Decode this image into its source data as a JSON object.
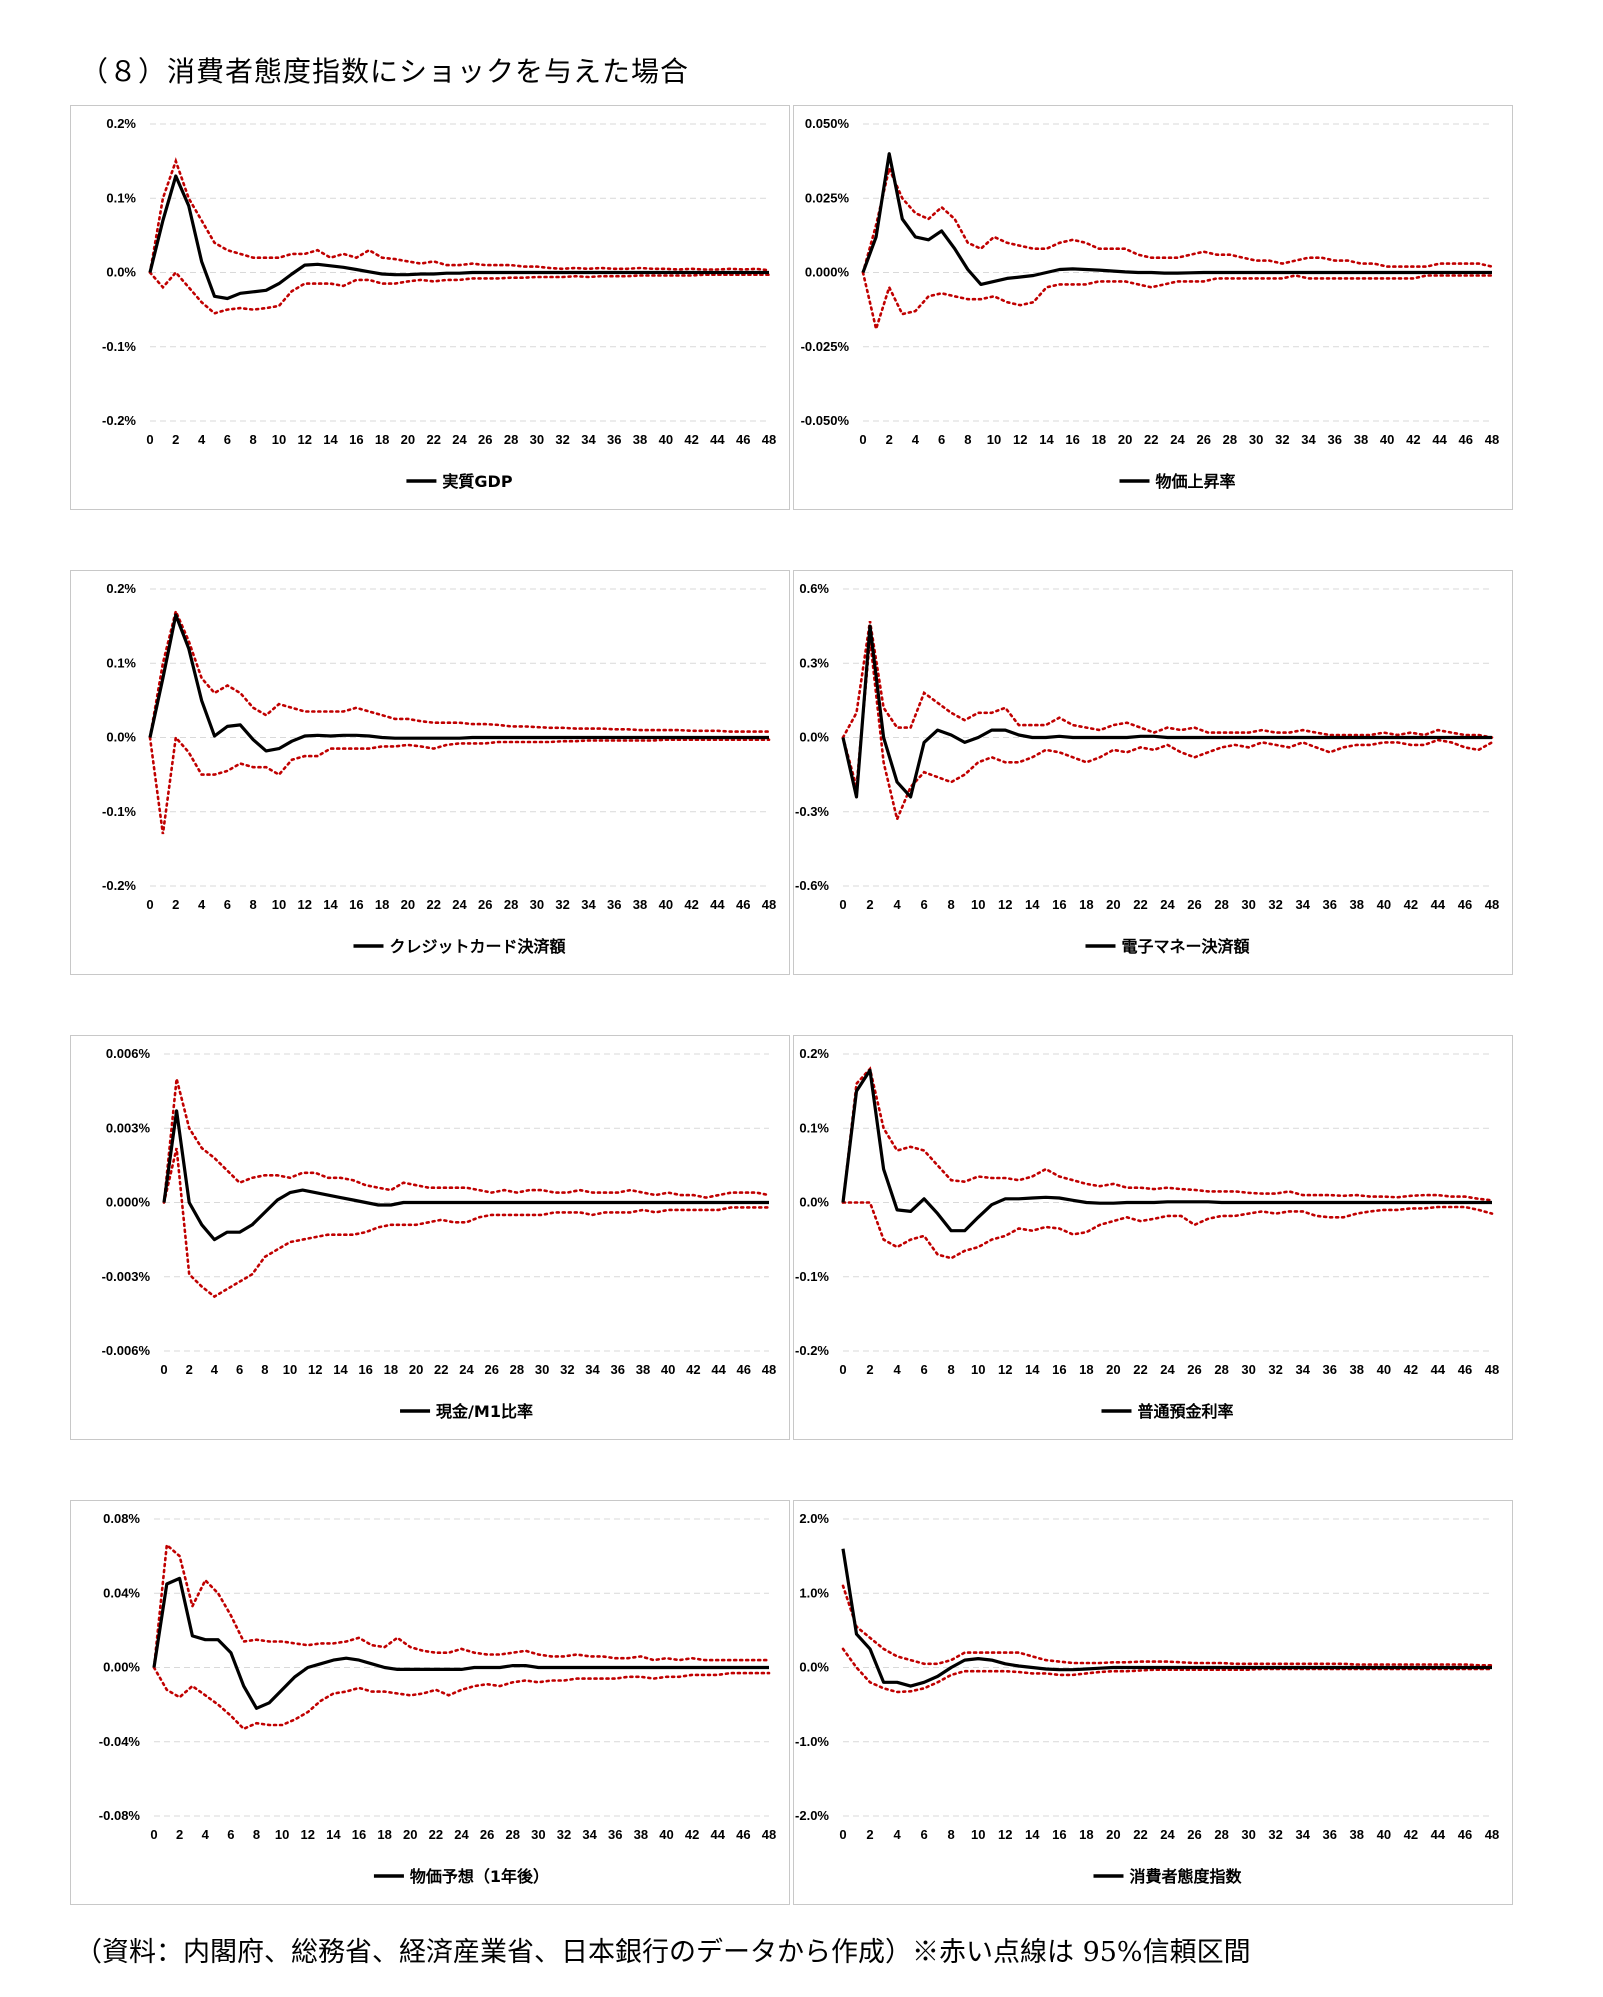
{
  "page_title": "（８）消費者態度指数にショックを与えた場合",
  "footnote": "（資料：内閣府、総務省、経済産業省、日本銀行のデータから作成）※赤い点線は 95%信頼区間",
  "colors": {
    "response": "#000000",
    "confidence_band": "#c00000",
    "gridline": "#d9d9d9",
    "panel_border": "#c8c8c8"
  },
  "x_ticks": [
    "0",
    "2",
    "4",
    "6",
    "8",
    "10",
    "12",
    "14",
    "16",
    "18",
    "20",
    "22",
    "24",
    "26",
    "28",
    "30",
    "32",
    "34",
    "36",
    "38",
    "40",
    "42",
    "44",
    "46",
    "48"
  ],
  "chart_data": [
    {
      "type": "line",
      "legend": "実質GDP",
      "ylim": [
        -0.2,
        0.2
      ],
      "y_ticks": [
        "0.2%",
        "0.1%",
        "0.0%",
        "-0.1%",
        "-0.2%"
      ],
      "response": [
        0,
        0.07,
        0.13,
        0.09,
        0.015,
        -0.032,
        -0.035,
        -0.028,
        -0.026,
        -0.024,
        -0.015,
        -0.002,
        0.01,
        0.011,
        0.009,
        0.007,
        0.004,
        0.001,
        -0.002,
        -0.003,
        -0.003,
        -0.002,
        -0.002,
        -0.001,
        -0.001,
        0,
        0,
        0,
        0,
        0,
        0,
        0,
        0,
        0,
        0,
        0,
        0,
        0,
        0,
        0,
        0,
        0,
        0,
        0,
        0,
        0,
        0,
        0,
        0
      ],
      "upper": [
        0,
        0.1,
        0.15,
        0.1,
        0.07,
        0.04,
        0.03,
        0.025,
        0.02,
        0.02,
        0.02,
        0.025,
        0.025,
        0.03,
        0.02,
        0.025,
        0.02,
        0.03,
        0.02,
        0.018,
        0.015,
        0.012,
        0.015,
        0.01,
        0.01,
        0.012,
        0.01,
        0.01,
        0.01,
        0.008,
        0.008,
        0.006,
        0.005,
        0.006,
        0.005,
        0.006,
        0.005,
        0.005,
        0.006,
        0.005,
        0.005,
        0.004,
        0.005,
        0.004,
        0.004,
        0.005,
        0.004,
        0.005,
        0.003
      ],
      "lower": [
        0,
        -0.02,
        0,
        -0.02,
        -0.04,
        -0.055,
        -0.05,
        -0.048,
        -0.05,
        -0.048,
        -0.045,
        -0.025,
        -0.015,
        -0.015,
        -0.015,
        -0.018,
        -0.01,
        -0.01,
        -0.015,
        -0.015,
        -0.012,
        -0.01,
        -0.012,
        -0.01,
        -0.01,
        -0.008,
        -0.008,
        -0.008,
        -0.007,
        -0.007,
        -0.006,
        -0.006,
        -0.006,
        -0.005,
        -0.006,
        -0.005,
        -0.005,
        -0.005,
        -0.004,
        -0.004,
        -0.004,
        -0.004,
        -0.004,
        -0.003,
        -0.003,
        -0.003,
        -0.003,
        -0.003,
        -0.003
      ]
    },
    {
      "type": "line",
      "legend": "物価上昇率",
      "ylim": [
        -0.05,
        0.05
      ],
      "y_ticks": [
        "0.050%",
        "0.025%",
        "0.000%",
        "-0.025%",
        "-0.050%"
      ],
      "response": [
        0,
        0.012,
        0.04,
        0.018,
        0.012,
        0.011,
        0.014,
        0.008,
        0.001,
        -0.004,
        -0.003,
        -0.002,
        -0.0015,
        -0.001,
        0,
        0.001,
        0.0012,
        0.001,
        0.0008,
        0.0005,
        0.0002,
        0,
        0,
        -0.0002,
        -0.0002,
        -0.0001,
        0,
        0,
        0,
        0,
        0,
        0,
        0,
        0,
        0,
        0,
        0,
        0,
        0,
        0,
        0,
        0,
        0,
        0,
        0,
        0,
        0,
        0,
        0
      ],
      "upper": [
        0,
        0.016,
        0.035,
        0.025,
        0.02,
        0.018,
        0.022,
        0.018,
        0.01,
        0.008,
        0.012,
        0.01,
        0.009,
        0.008,
        0.008,
        0.01,
        0.011,
        0.01,
        0.008,
        0.008,
        0.008,
        0.006,
        0.005,
        0.005,
        0.005,
        0.006,
        0.007,
        0.006,
        0.006,
        0.005,
        0.004,
        0.004,
        0.003,
        0.004,
        0.005,
        0.005,
        0.004,
        0.004,
        0.003,
        0.003,
        0.002,
        0.002,
        0.002,
        0.002,
        0.003,
        0.003,
        0.003,
        0.003,
        0.002
      ],
      "lower": [
        0,
        -0.019,
        -0.005,
        -0.014,
        -0.013,
        -0.008,
        -0.007,
        -0.008,
        -0.009,
        -0.009,
        -0.008,
        -0.01,
        -0.011,
        -0.01,
        -0.005,
        -0.004,
        -0.004,
        -0.004,
        -0.003,
        -0.003,
        -0.003,
        -0.004,
        -0.005,
        -0.004,
        -0.003,
        -0.003,
        -0.003,
        -0.002,
        -0.002,
        -0.002,
        -0.002,
        -0.002,
        -0.002,
        -0.001,
        -0.002,
        -0.002,
        -0.002,
        -0.002,
        -0.002,
        -0.002,
        -0.002,
        -0.002,
        -0.002,
        -0.001,
        -0.001,
        -0.001,
        -0.001,
        -0.001,
        -0.001
      ]
    },
    {
      "type": "line",
      "legend": "クレジットカード決済額",
      "ylim": [
        -0.2,
        0.2
      ],
      "y_ticks": [
        "0.2%",
        "0.1%",
        "0.0%",
        "-0.1%",
        "-0.2%"
      ],
      "response": [
        0,
        0.08,
        0.165,
        0.12,
        0.05,
        0.002,
        0.015,
        0.017,
        -0.003,
        -0.018,
        -0.015,
        -0.005,
        0.002,
        0.003,
        0.002,
        0.003,
        0.003,
        0.002,
        0,
        -0.001,
        -0.001,
        -0.001,
        -0.001,
        -0.001,
        -0.001,
        0,
        0,
        0,
        0,
        0,
        0,
        0,
        0,
        0,
        0,
        0,
        0,
        0,
        0,
        0,
        0,
        0,
        0,
        0,
        0,
        0,
        0,
        0,
        0
      ],
      "upper": [
        0,
        0.1,
        0.17,
        0.13,
        0.08,
        0.06,
        0.07,
        0.06,
        0.04,
        0.03,
        0.045,
        0.04,
        0.035,
        0.035,
        0.035,
        0.035,
        0.04,
        0.035,
        0.03,
        0.025,
        0.025,
        0.022,
        0.02,
        0.02,
        0.02,
        0.018,
        0.018,
        0.017,
        0.015,
        0.015,
        0.014,
        0.013,
        0.013,
        0.012,
        0.012,
        0.012,
        0.011,
        0.011,
        0.01,
        0.01,
        0.01,
        0.01,
        0.009,
        0.009,
        0.009,
        0.008,
        0.008,
        0.008,
        0.008
      ],
      "lower": [
        0,
        -0.13,
        0,
        -0.02,
        -0.05,
        -0.05,
        -0.045,
        -0.035,
        -0.04,
        -0.04,
        -0.05,
        -0.03,
        -0.025,
        -0.025,
        -0.015,
        -0.015,
        -0.015,
        -0.015,
        -0.012,
        -0.012,
        -0.01,
        -0.012,
        -0.015,
        -0.01,
        -0.008,
        -0.008,
        -0.008,
        -0.006,
        -0.006,
        -0.006,
        -0.006,
        -0.006,
        -0.005,
        -0.005,
        -0.004,
        -0.004,
        -0.004,
        -0.004,
        -0.004,
        -0.004,
        -0.003,
        -0.003,
        -0.003,
        -0.003,
        -0.003,
        -0.003,
        -0.003,
        -0.003,
        -0.003
      ]
    },
    {
      "type": "line",
      "legend": "電子マネー決済額",
      "ylim": [
        -0.6,
        0.6
      ],
      "y_ticks": [
        "0.6%",
        "0.3%",
        "0.0%",
        "-0.3%",
        "-0.6%"
      ],
      "response": [
        0,
        -0.24,
        0.45,
        0,
        -0.18,
        -0.24,
        -0.02,
        0.03,
        0.01,
        -0.02,
        0,
        0.03,
        0.03,
        0.01,
        0,
        0,
        0.005,
        0,
        0,
        0,
        0,
        0,
        0.005,
        0.005,
        0,
        0,
        0,
        0,
        0,
        0,
        0,
        0,
        0,
        0,
        0,
        0,
        0,
        0,
        0,
        0,
        0,
        0,
        0,
        0,
        0,
        0,
        0,
        0,
        0
      ],
      "upper": [
        0,
        0.1,
        0.47,
        0.12,
        0.04,
        0.04,
        0.18,
        0.14,
        0.1,
        0.07,
        0.1,
        0.1,
        0.12,
        0.05,
        0.05,
        0.05,
        0.08,
        0.05,
        0.04,
        0.03,
        0.05,
        0.06,
        0.04,
        0.02,
        0.04,
        0.03,
        0.04,
        0.02,
        0.02,
        0.02,
        0.02,
        0.03,
        0.02,
        0.02,
        0.03,
        0.02,
        0.01,
        0.01,
        0.01,
        0.01,
        0.02,
        0.01,
        0.02,
        0.01,
        0.03,
        0.02,
        0.01,
        0.01,
        0
      ],
      "lower": [
        0,
        -0.2,
        0.4,
        -0.1,
        -0.33,
        -0.2,
        -0.14,
        -0.16,
        -0.18,
        -0.15,
        -0.1,
        -0.08,
        -0.1,
        -0.1,
        -0.08,
        -0.05,
        -0.06,
        -0.08,
        -0.1,
        -0.08,
        -0.05,
        -0.06,
        -0.04,
        -0.05,
        -0.03,
        -0.06,
        -0.08,
        -0.06,
        -0.04,
        -0.03,
        -0.04,
        -0.02,
        -0.03,
        -0.04,
        -0.02,
        -0.04,
        -0.06,
        -0.04,
        -0.03,
        -0.03,
        -0.02,
        -0.02,
        -0.03,
        -0.03,
        -0.01,
        -0.02,
        -0.04,
        -0.05,
        -0.02
      ]
    },
    {
      "type": "line",
      "legend": "現金/M1比率",
      "ylim": [
        -0.006,
        0.006
      ],
      "y_ticks": [
        "0.006%",
        "0.003%",
        "0.000%",
        "-0.003%",
        "-0.006%"
      ],
      "response": [
        0,
        0.0037,
        0,
        -0.0009,
        -0.0015,
        -0.0012,
        -0.0012,
        -0.0009,
        -0.0004,
        0.0001,
        0.0004,
        0.0005,
        0.0004,
        0.0003,
        0.0002,
        0.0001,
        0,
        -0.0001,
        -0.0001,
        0,
        0,
        0,
        0,
        0,
        0,
        0,
        0,
        0,
        0,
        0,
        0,
        0,
        0,
        0,
        0,
        0,
        0,
        0,
        0,
        0,
        0,
        0,
        0,
        0,
        0,
        0,
        0,
        0,
        0
      ],
      "upper": [
        0,
        0.005,
        0.003,
        0.0022,
        0.0018,
        0.0013,
        0.0008,
        0.001,
        0.0011,
        0.0011,
        0.001,
        0.0012,
        0.0012,
        0.001,
        0.001,
        0.0009,
        0.0007,
        0.0006,
        0.0005,
        0.0008,
        0.0007,
        0.0006,
        0.0006,
        0.0006,
        0.0006,
        0.0005,
        0.0004,
        0.0005,
        0.0004,
        0.0005,
        0.0005,
        0.0004,
        0.0004,
        0.0005,
        0.0004,
        0.0004,
        0.0004,
        0.0005,
        0.0004,
        0.0003,
        0.0004,
        0.0003,
        0.0003,
        0.0002,
        0.0003,
        0.0004,
        0.0004,
        0.0004,
        0.0003
      ],
      "lower": [
        0,
        0.0022,
        -0.0029,
        -0.0034,
        -0.0038,
        -0.0035,
        -0.0032,
        -0.0029,
        -0.0022,
        -0.0019,
        -0.0016,
        -0.0015,
        -0.0014,
        -0.0013,
        -0.0013,
        -0.0013,
        -0.0012,
        -0.001,
        -0.0009,
        -0.0009,
        -0.0009,
        -0.0008,
        -0.0007,
        -0.0008,
        -0.0008,
        -0.0006,
        -0.0005,
        -0.0005,
        -0.0005,
        -0.0005,
        -0.0005,
        -0.0004,
        -0.0004,
        -0.0004,
        -0.0005,
        -0.0004,
        -0.0004,
        -0.0004,
        -0.0003,
        -0.0004,
        -0.0003,
        -0.0003,
        -0.0003,
        -0.0003,
        -0.0003,
        -0.0002,
        -0.0002,
        -0.0002,
        -0.0002
      ]
    },
    {
      "type": "line",
      "legend": "普通預金利率",
      "ylim": [
        -0.2,
        0.2
      ],
      "y_ticks": [
        "0.2%",
        "0.1%",
        "0.0%",
        "-0.1%",
        "-0.2%"
      ],
      "response": [
        0,
        0.15,
        0.178,
        0.045,
        -0.01,
        -0.012,
        0.005,
        -0.015,
        -0.038,
        -0.038,
        -0.02,
        -0.003,
        0.005,
        0.005,
        0.006,
        0.007,
        0.006,
        0.003,
        0,
        -0.001,
        -0.001,
        0,
        0,
        0,
        0.001,
        0.001,
        0.001,
        0.001,
        0,
        0,
        0,
        0,
        0,
        0,
        0,
        0,
        0,
        0,
        0,
        0,
        0,
        0,
        0,
        0,
        0,
        0,
        0,
        0,
        0
      ],
      "upper": [
        0,
        0.16,
        0.18,
        0.1,
        0.07,
        0.075,
        0.07,
        0.05,
        0.03,
        0.028,
        0.035,
        0.033,
        0.033,
        0.03,
        0.035,
        0.045,
        0.035,
        0.03,
        0.025,
        0.022,
        0.025,
        0.02,
        0.02,
        0.018,
        0.02,
        0.018,
        0.017,
        0.015,
        0.015,
        0.015,
        0.013,
        0.012,
        0.012,
        0.015,
        0.01,
        0.01,
        0.01,
        0.009,
        0.01,
        0.008,
        0.008,
        0.007,
        0.009,
        0.01,
        0.01,
        0.008,
        0.008,
        0.005,
        0.003
      ],
      "lower": [
        0,
        0,
        0,
        -0.05,
        -0.06,
        -0.05,
        -0.045,
        -0.07,
        -0.075,
        -0.065,
        -0.06,
        -0.05,
        -0.045,
        -0.035,
        -0.038,
        -0.033,
        -0.035,
        -0.043,
        -0.04,
        -0.03,
        -0.025,
        -0.02,
        -0.025,
        -0.022,
        -0.018,
        -0.018,
        -0.03,
        -0.022,
        -0.018,
        -0.018,
        -0.015,
        -0.012,
        -0.015,
        -0.012,
        -0.012,
        -0.018,
        -0.02,
        -0.02,
        -0.015,
        -0.012,
        -0.01,
        -0.01,
        -0.008,
        -0.008,
        -0.006,
        -0.006,
        -0.006,
        -0.01,
        -0.015
      ]
    },
    {
      "type": "line",
      "legend": "物価予想（1年後）",
      "ylim": [
        -0.08,
        0.08
      ],
      "y_ticks": [
        "0.08%",
        "0.04%",
        "0.00%",
        "-0.04%",
        "-0.08%"
      ],
      "response": [
        0,
        0.045,
        0.048,
        0.017,
        0.015,
        0.015,
        0.008,
        -0.01,
        -0.022,
        -0.019,
        -0.012,
        -0.005,
        0,
        0.002,
        0.004,
        0.005,
        0.004,
        0.002,
        0,
        -0.001,
        -0.001,
        -0.001,
        -0.001,
        -0.001,
        -0.001,
        0,
        0,
        0,
        0.001,
        0.001,
        0,
        0,
        0,
        0,
        0,
        0,
        0,
        0,
        0,
        0,
        0,
        0,
        0,
        0,
        0,
        0,
        0,
        0,
        0
      ],
      "upper": [
        0,
        0.066,
        0.06,
        0.033,
        0.047,
        0.04,
        0.028,
        0.014,
        0.015,
        0.014,
        0.014,
        0.013,
        0.012,
        0.013,
        0.013,
        0.014,
        0.016,
        0.012,
        0.011,
        0.016,
        0.011,
        0.009,
        0.008,
        0.008,
        0.01,
        0.008,
        0.007,
        0.007,
        0.008,
        0.009,
        0.007,
        0.006,
        0.006,
        0.007,
        0.006,
        0.006,
        0.005,
        0.005,
        0.006,
        0.004,
        0.005,
        0.004,
        0.005,
        0.004,
        0.004,
        0.004,
        0.004,
        0.004,
        0.004
      ],
      "lower": [
        0,
        -0.012,
        -0.016,
        -0.01,
        -0.015,
        -0.02,
        -0.026,
        -0.033,
        -0.03,
        -0.031,
        -0.031,
        -0.028,
        -0.024,
        -0.018,
        -0.014,
        -0.013,
        -0.011,
        -0.013,
        -0.013,
        -0.014,
        -0.015,
        -0.014,
        -0.012,
        -0.015,
        -0.012,
        -0.01,
        -0.009,
        -0.01,
        -0.008,
        -0.007,
        -0.008,
        -0.007,
        -0.007,
        -0.006,
        -0.006,
        -0.006,
        -0.006,
        -0.005,
        -0.005,
        -0.006,
        -0.005,
        -0.005,
        -0.004,
        -0.004,
        -0.004,
        -0.003,
        -0.003,
        -0.003,
        -0.003
      ]
    },
    {
      "type": "line",
      "legend": "消費者態度指数",
      "ylim": [
        -2,
        2
      ],
      "y_ticks": [
        "2.0%",
        "1.0%",
        "0.0%",
        "-1.0%",
        "-2.0%"
      ],
      "response": [
        1.6,
        0.45,
        0.25,
        -0.2,
        -0.2,
        -0.25,
        -0.2,
        -0.12,
        0,
        0.1,
        0.12,
        0.1,
        0.05,
        0.02,
        0,
        -0.02,
        -0.03,
        -0.03,
        -0.02,
        -0.01,
        0,
        0,
        0,
        0,
        0,
        0,
        0,
        0,
        0,
        0,
        0,
        0,
        0,
        0,
        0,
        0,
        0,
        0,
        0,
        0,
        0,
        0,
        0,
        0,
        0,
        0,
        0,
        0,
        0
      ],
      "upper": [
        1.1,
        0.55,
        0.4,
        0.25,
        0.15,
        0.1,
        0.05,
        0.05,
        0.1,
        0.2,
        0.2,
        0.2,
        0.2,
        0.2,
        0.15,
        0.1,
        0.08,
        0.06,
        0.06,
        0.06,
        0.07,
        0.07,
        0.08,
        0.08,
        0.08,
        0.07,
        0.06,
        0.06,
        0.06,
        0.05,
        0.05,
        0.05,
        0.05,
        0.05,
        0.05,
        0.05,
        0.05,
        0.05,
        0.04,
        0.04,
        0.04,
        0.04,
        0.04,
        0.04,
        0.04,
        0.04,
        0.04,
        0.03,
        0.03
      ],
      "lower": [
        0.25,
        0,
        -0.2,
        -0.28,
        -0.33,
        -0.32,
        -0.28,
        -0.2,
        -0.1,
        -0.05,
        -0.05,
        -0.05,
        -0.05,
        -0.06,
        -0.08,
        -0.08,
        -0.1,
        -0.1,
        -0.08,
        -0.06,
        -0.05,
        -0.05,
        -0.04,
        -0.03,
        -0.03,
        -0.03,
        -0.03,
        -0.03,
        -0.03,
        -0.03,
        -0.03,
        -0.02,
        -0.02,
        -0.02,
        -0.02,
        -0.02,
        -0.02,
        -0.02,
        -0.02,
        -0.02,
        -0.02,
        -0.02,
        -0.02,
        -0.02,
        -0.02,
        -0.02,
        -0.02,
        -0.02,
        -0.02
      ]
    }
  ]
}
